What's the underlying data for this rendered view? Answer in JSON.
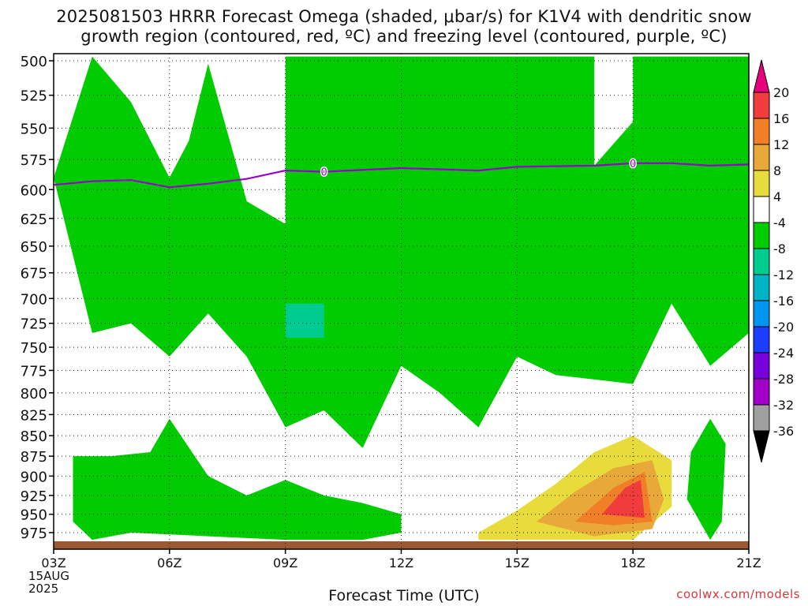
{
  "header": {
    "title_line1": "2025081503 HRRR Forecast Omega (shaded, μbar/s) for K1V4 with dendritic snow",
    "title_line2": "growth region (contoured, red, ºC) and freezing level (contoured, purple, ºC)"
  },
  "footer": {
    "xlabel": "Forecast Time (UTC)",
    "credit": "coolwx.com/models",
    "start_date_day": "15AUG",
    "start_date_year": "2025"
  },
  "colorbar": {
    "labels": [
      "20",
      "16",
      "12",
      "8",
      "4",
      "-4",
      "-8",
      "-12",
      "-16",
      "-20",
      "-24",
      "-28",
      "-32",
      "-36"
    ],
    "bins": [
      {
        "label": ">20",
        "color": "#e6007e"
      },
      {
        "label": "16 to 20",
        "color": "#f03c3c"
      },
      {
        "label": "12 to 16",
        "color": "#f07f28"
      },
      {
        "label": "8 to 12",
        "color": "#e8a93a"
      },
      {
        "label": "4 to 8",
        "color": "#e8dc3c"
      },
      {
        "label": "-4 to 4",
        "color": "#ffffff"
      },
      {
        "label": "-8 to -4",
        "color": "#00cc00"
      },
      {
        "label": "-12 to -8",
        "color": "#00cc90"
      },
      {
        "label": "-16 to -12",
        "color": "#00b4c8"
      },
      {
        "label": "-20 to -16",
        "color": "#0096f0"
      },
      {
        "label": "-24 to -20",
        "color": "#1e3cff"
      },
      {
        "label": "-28 to -24",
        "color": "#7800dc"
      },
      {
        "label": "-32 to -28",
        "color": "#a000c8"
      },
      {
        "label": "-36 to -32",
        "color": "#a0a0a0"
      },
      {
        "label": "<-36",
        "color": "#000000"
      }
    ]
  },
  "chart_data": {
    "type": "heatmap",
    "xlabel": "Forecast Time (UTC)",
    "ylabel": "",
    "x_ticks": [
      "03Z",
      "06Z",
      "09Z",
      "12Z",
      "15Z",
      "18Z",
      "21Z"
    ],
    "x_hours": [
      3,
      21
    ],
    "y_ticks": [
      500,
      525,
      550,
      575,
      600,
      625,
      650,
      675,
      700,
      725,
      750,
      775,
      800,
      825,
      850,
      875,
      900,
      925,
      950,
      975
    ],
    "y_range_hpa": [
      500,
      990
    ],
    "y_axis": "pressure (hPa), log scale, inverted",
    "grid": true,
    "freezing_level": {
      "contour_label": "0",
      "color": "#9900cc",
      "points": [
        [
          3,
          596
        ],
        [
          4,
          593
        ],
        [
          5,
          592
        ],
        [
          6,
          598
        ],
        [
          7,
          595
        ],
        [
          8,
          591
        ],
        [
          9,
          584
        ],
        [
          10,
          585
        ],
        [
          12,
          582
        ],
        [
          14,
          584
        ],
        [
          15,
          581
        ],
        [
          17,
          580
        ],
        [
          18,
          578
        ],
        [
          19,
          578
        ],
        [
          20,
          580
        ],
        [
          21,
          579
        ]
      ]
    },
    "omega_regions": [
      {
        "value_range": "-8 to -4",
        "points": [
          [
            4,
            497
          ],
          [
            5,
            530
          ],
          [
            6,
            590
          ],
          [
            6.5,
            560
          ],
          [
            7,
            502
          ],
          [
            8,
            610
          ],
          [
            9,
            630
          ],
          [
            9,
            497
          ],
          [
            10,
            497
          ],
          [
            12,
            497
          ],
          [
            14,
            497
          ],
          [
            15,
            497
          ],
          [
            16,
            497
          ],
          [
            17,
            497
          ],
          [
            17,
            580
          ],
          [
            18,
            545
          ],
          [
            18,
            497
          ],
          [
            20,
            497
          ],
          [
            21,
            497
          ],
          [
            21,
            735
          ],
          [
            20,
            770
          ],
          [
            19,
            705
          ],
          [
            18,
            790
          ],
          [
            16,
            780
          ],
          [
            15,
            760
          ],
          [
            14,
            840
          ],
          [
            13,
            800
          ],
          [
            12,
            770
          ],
          [
            11,
            865
          ],
          [
            10,
            820
          ],
          [
            9,
            840
          ],
          [
            8,
            760
          ],
          [
            7,
            715
          ],
          [
            6,
            760
          ],
          [
            5,
            725
          ],
          [
            4,
            735
          ],
          [
            3,
            590
          ]
        ]
      },
      {
        "value_range": "-12 to -8",
        "points": [
          [
            9,
            705
          ],
          [
            10,
            705
          ],
          [
            10,
            740
          ],
          [
            9,
            740
          ]
        ]
      },
      {
        "value_range": "-8 to -4",
        "points": [
          [
            3.5,
            875
          ],
          [
            4.5,
            875
          ],
          [
            5.5,
            870
          ],
          [
            6,
            830
          ],
          [
            7,
            900
          ],
          [
            8,
            925
          ],
          [
            9,
            905
          ],
          [
            10,
            925
          ],
          [
            11,
            935
          ],
          [
            12,
            950
          ],
          [
            12,
            975
          ],
          [
            11,
            985
          ],
          [
            9,
            985
          ],
          [
            7,
            980
          ],
          [
            5,
            975
          ],
          [
            4,
            985
          ],
          [
            3.5,
            960
          ]
        ]
      },
      {
        "value_range": "4 to 8",
        "points": [
          [
            14,
            975
          ],
          [
            15,
            945
          ],
          [
            16,
            910
          ],
          [
            17,
            870
          ],
          [
            18,
            850
          ],
          [
            19,
            880
          ],
          [
            19,
            940
          ],
          [
            18,
            985
          ],
          [
            16,
            985
          ],
          [
            14,
            985
          ]
        ]
      },
      {
        "value_range": "8 to 12",
        "points": [
          [
            15.5,
            960
          ],
          [
            16.5,
            920
          ],
          [
            17.5,
            890
          ],
          [
            18.5,
            880
          ],
          [
            18.8,
            930
          ],
          [
            18.5,
            970
          ],
          [
            17,
            980
          ]
        ]
      },
      {
        "value_range": "12 to 16",
        "points": [
          [
            16.5,
            960
          ],
          [
            17.5,
            915
          ],
          [
            18.3,
            895
          ],
          [
            18.5,
            960
          ],
          [
            17.5,
            965
          ]
        ]
      },
      {
        "value_range": "16 to 20",
        "points": [
          [
            17.2,
            950
          ],
          [
            17.8,
            915
          ],
          [
            18.2,
            905
          ],
          [
            18.3,
            955
          ]
        ]
      },
      {
        "value_range": "-8 to -4",
        "points": [
          [
            19.5,
            870
          ],
          [
            20,
            830
          ],
          [
            20.4,
            860
          ],
          [
            20.3,
            960
          ],
          [
            20,
            985
          ],
          [
            19.4,
            930
          ]
        ]
      }
    ]
  }
}
